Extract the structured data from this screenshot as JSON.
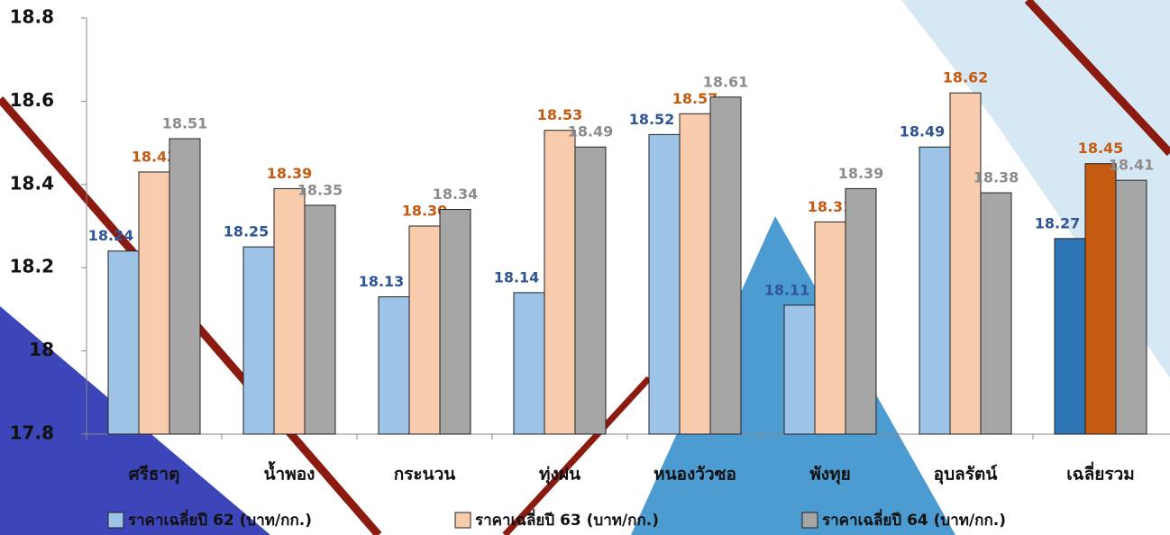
{
  "chart_data": {
    "type": "bar",
    "categories": [
      "ศรีธาตุ",
      "น้ำพอง",
      "กระนวน",
      "ทุ่งฝน",
      "หนองวัวซอ",
      "พังทุย",
      "อุบลรัตน์",
      "เฉลี่ยรวม"
    ],
    "series": [
      {
        "name": "ราคาเฉลี่ยปี 62 (บาท/กก.)",
        "color": "#9dc3e6",
        "label_color": "#2f5597",
        "colors": [
          "#9dc3e6",
          "#9dc3e6",
          "#9dc3e6",
          "#9dc3e6",
          "#9dc3e6",
          "#9dc3e6",
          "#9dc3e6",
          "#2e75b6"
        ],
        "values": [
          18.24,
          18.25,
          18.13,
          18.14,
          18.52,
          18.11,
          18.49,
          18.27
        ],
        "value_labels": [
          "18.24",
          "18.25",
          "18.13",
          "18.14",
          "18.52",
          "18.11",
          "18.49",
          "18.27"
        ]
      },
      {
        "name": "ราคาเฉลี่ยปี 63 (บาท/กก.)",
        "color": "#f8cbad",
        "label_color": "#c55a11",
        "colors": [
          "#f8cbad",
          "#f8cbad",
          "#f8cbad",
          "#f8cbad",
          "#f8cbad",
          "#f8cbad",
          "#f8cbad",
          "#c55a11"
        ],
        "values": [
          18.43,
          18.39,
          18.3,
          18.53,
          18.57,
          18.31,
          18.62,
          18.45
        ],
        "value_labels": [
          "18.43",
          "18.39",
          "18.30",
          "18.53",
          "18.57",
          "18.31",
          "18.62",
          "18.45"
        ]
      },
      {
        "name": "ราคาเฉลี่ยปี 64 (บาท/กก.)",
        "color": "#a6a6a6",
        "label_color": "#8c8c8c",
        "colors": [
          "#a6a6a6",
          "#a6a6a6",
          "#a6a6a6",
          "#a6a6a6",
          "#a6a6a6",
          "#a6a6a6",
          "#a6a6a6",
          "#a6a6a6"
        ],
        "values": [
          18.51,
          18.35,
          18.34,
          18.49,
          18.61,
          18.39,
          18.38,
          18.41
        ],
        "value_labels": [
          "18.51",
          "18.35",
          "18.34",
          "18.49",
          "18.61",
          "18.39",
          "18.38",
          "18.41"
        ]
      }
    ],
    "ylim": [
      17.8,
      18.8
    ],
    "yticks": [
      17.8,
      18,
      18.2,
      18.4,
      18.6,
      18.8
    ],
    "grid": false,
    "legend": "bottom"
  }
}
